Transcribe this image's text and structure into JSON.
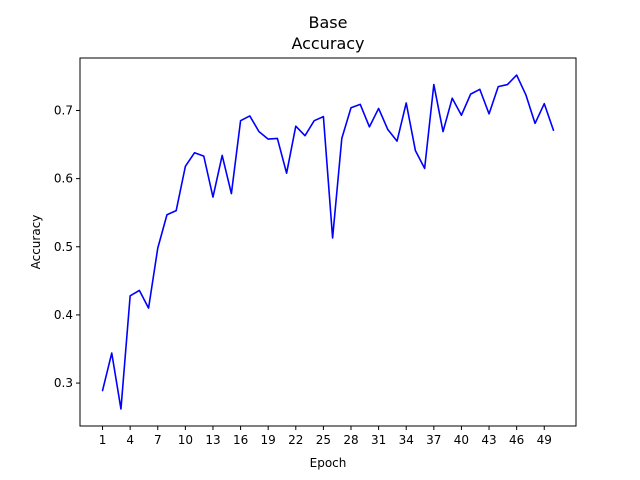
{
  "chart_data": {
    "type": "line",
    "title_line1": "Base",
    "title_line2": "Accuracy",
    "xlabel": "Epoch",
    "ylabel": "Accuracy",
    "grid": false,
    "xlim": [
      -1.45,
      52.45
    ],
    "ylim": [
      0.237,
      0.777
    ],
    "xticks": [
      1,
      4,
      7,
      10,
      13,
      16,
      19,
      22,
      25,
      28,
      31,
      34,
      37,
      40,
      43,
      46,
      49
    ],
    "yticks": [
      0.3,
      0.4,
      0.5,
      0.6,
      0.7
    ],
    "ytick_labels": [
      "0.3",
      "0.4",
      "0.5",
      "0.6",
      "0.7"
    ],
    "series": [
      {
        "color": "#0000ff",
        "x": [
          1,
          2,
          3,
          4,
          5,
          6,
          7,
          8,
          9,
          10,
          11,
          12,
          13,
          14,
          15,
          16,
          17,
          18,
          19,
          20,
          21,
          22,
          23,
          24,
          25,
          26,
          27,
          28,
          29,
          30,
          31,
          32,
          33,
          34,
          35,
          36,
          37,
          38,
          39,
          40,
          41,
          42,
          43,
          44,
          45,
          46,
          47,
          48,
          49,
          50
        ],
        "values": [
          0.289,
          0.344,
          0.262,
          0.428,
          0.436,
          0.41,
          0.498,
          0.547,
          0.553,
          0.618,
          0.638,
          0.633,
          0.573,
          0.634,
          0.578,
          0.685,
          0.692,
          0.669,
          0.658,
          0.659,
          0.608,
          0.677,
          0.663,
          0.685,
          0.691,
          0.513,
          0.659,
          0.704,
          0.709,
          0.676,
          0.703,
          0.672,
          0.655,
          0.711,
          0.641,
          0.615,
          0.738,
          0.669,
          0.718,
          0.693,
          0.724,
          0.731,
          0.695,
          0.735,
          0.738,
          0.752,
          0.723,
          0.681,
          0.71,
          0.671
        ]
      }
    ]
  }
}
